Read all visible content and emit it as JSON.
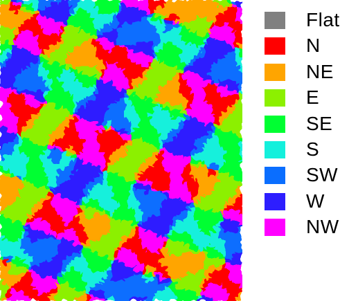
{
  "map": {
    "description_classes": [
      "N",
      "NE",
      "E",
      "SE",
      "S",
      "SW",
      "W",
      "NW"
    ]
  },
  "legend": {
    "items": [
      {
        "label": "Flat",
        "color": "#808080"
      },
      {
        "label": "N",
        "color": "#ff0000"
      },
      {
        "label": "NE",
        "color": "#ffa500"
      },
      {
        "label": "E",
        "color": "#8cf000"
      },
      {
        "label": "SE",
        "color": "#00ff32"
      },
      {
        "label": "S",
        "color": "#14f0dc"
      },
      {
        "label": "SW",
        "color": "#0a6eff"
      },
      {
        "label": "W",
        "color": "#2d1eff"
      },
      {
        "label": "NW",
        "color": "#ff00ff"
      }
    ]
  }
}
